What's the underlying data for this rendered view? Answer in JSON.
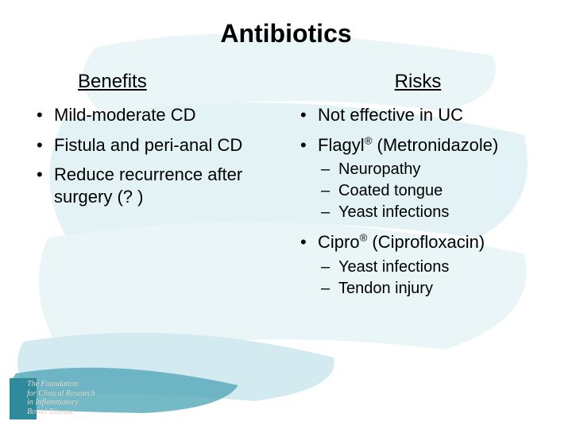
{
  "title": "Antibiotics",
  "benefits": {
    "header": "Benefits",
    "items": [
      "Mild-moderate CD",
      "Fistula and peri-anal CD",
      "Reduce recurrence after surgery (? )"
    ]
  },
  "risks": {
    "header": "Risks",
    "items": [
      {
        "text": "Not effective in UC"
      },
      {
        "html": "Flagyl<sup>®</sup> (Metronidazole)",
        "sub": [
          "Neuropathy",
          "Coated tongue",
          "Yeast infections"
        ]
      },
      {
        "html": "Cipro<sup>®</sup> (Ciprofloxacin)",
        "sub": [
          "Yeast infections",
          "Tendon injury"
        ]
      }
    ]
  },
  "footer_logo": {
    "line1": "The Foundation",
    "line2": "for Clinical Research",
    "line3": "in Inflammatory",
    "line4": "Bowel Disease"
  },
  "style": {
    "brush_color_light": "#dff1f5",
    "brush_color_mid": "#bfe4ec",
    "brush_color_accent": "#4aa3b5",
    "background": "#ffffff",
    "title_fontsize": 32,
    "header_fontsize": 24,
    "bullet_fontsize": 22,
    "dash_fontsize": 20,
    "text_color": "#000000",
    "logo_block_color": "#2f8a9b",
    "logo_text_color": "#e9e2d5"
  }
}
